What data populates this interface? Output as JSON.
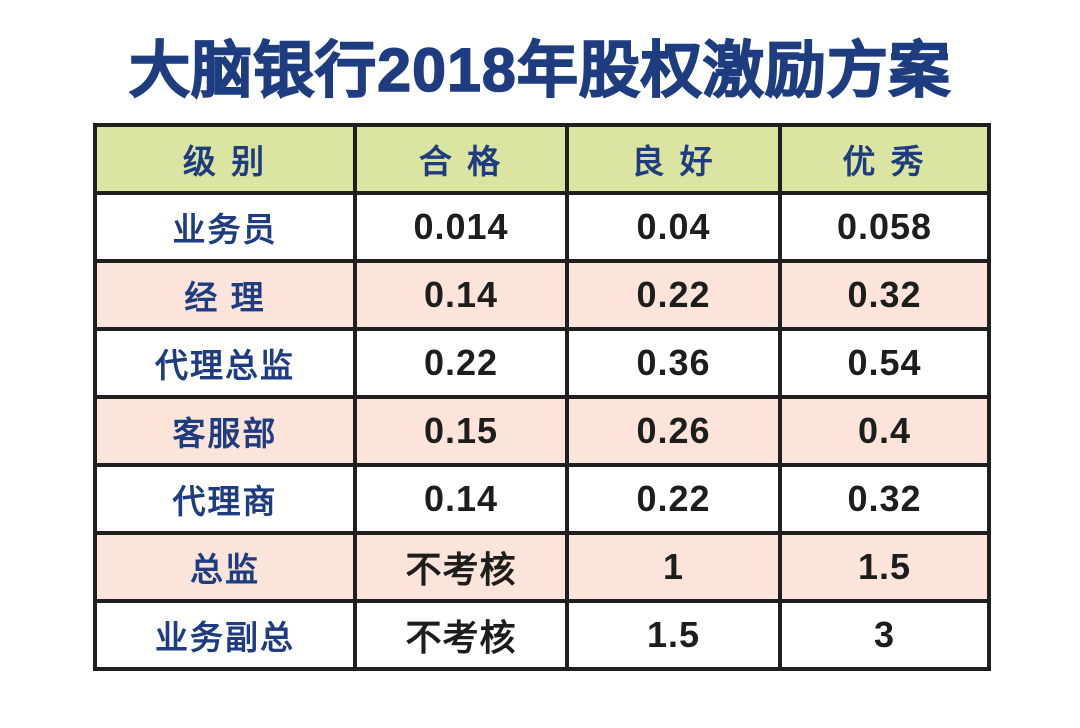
{
  "title": "大脑银行2018年股权激励方案",
  "colors": {
    "title_text": "#1e3c80",
    "header_bg": "#dbe5a1",
    "row_pink_bg": "#fce4db",
    "row_white_bg": "#ffffff",
    "label_text": "#1e3c80",
    "value_text": "#1d1d1b",
    "border": "#1f1f1f"
  },
  "chart_data": {
    "type": "table",
    "title": "大脑银行2018年股权激励方案",
    "columns": [
      "级 别",
      "合 格",
      "良 好",
      "优 秀"
    ],
    "rows": [
      {
        "label": "业务员",
        "values": [
          "0.014",
          "0.04",
          "0.058"
        ]
      },
      {
        "label": "经 理",
        "values": [
          "0.14",
          "0.22",
          "0.32"
        ]
      },
      {
        "label": "代理总监",
        "values": [
          "0.22",
          "0.36",
          "0.54"
        ]
      },
      {
        "label": "客服部",
        "values": [
          "0.15",
          "0.26",
          "0.4"
        ]
      },
      {
        "label": "代理商",
        "values": [
          "0.14",
          "0.22",
          "0.32"
        ]
      },
      {
        "label": "总监",
        "values": [
          "不考核",
          "1",
          "1.5"
        ]
      },
      {
        "label": "业务副总",
        "values": [
          "不考核",
          "1.5",
          "3"
        ]
      }
    ],
    "row_shading": [
      "white",
      "pink",
      "white",
      "pink",
      "white",
      "pink",
      "white"
    ],
    "layout": "header row green, alternating white/pink data rows, black grid borders"
  }
}
